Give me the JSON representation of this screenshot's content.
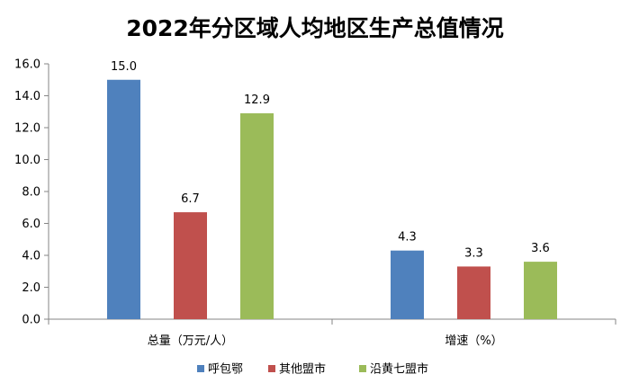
{
  "chart_data": {
    "type": "bar",
    "title": "2022年分区域人均地区生产总值情况",
    "categories": [
      "总量（万元/人）",
      "增速（%）"
    ],
    "series": [
      {
        "name": "呼包鄂",
        "color": "#4F81BD",
        "values": [
          15.0,
          4.3
        ]
      },
      {
        "name": "其他盟市",
        "color": "#C0504D",
        "values": [
          6.7,
          3.3
        ]
      },
      {
        "name": "沿黄七盟市",
        "color": "#9BBB59",
        "values": [
          12.9,
          3.6
        ]
      }
    ],
    "ylim": [
      0,
      16
    ],
    "yticks": [
      "0.0",
      "2.0",
      "4.0",
      "6.0",
      "8.0",
      "10.0",
      "12.0",
      "14.0",
      "16.0"
    ],
    "grid": false,
    "legend_position": "bottom",
    "data_labels": true
  }
}
